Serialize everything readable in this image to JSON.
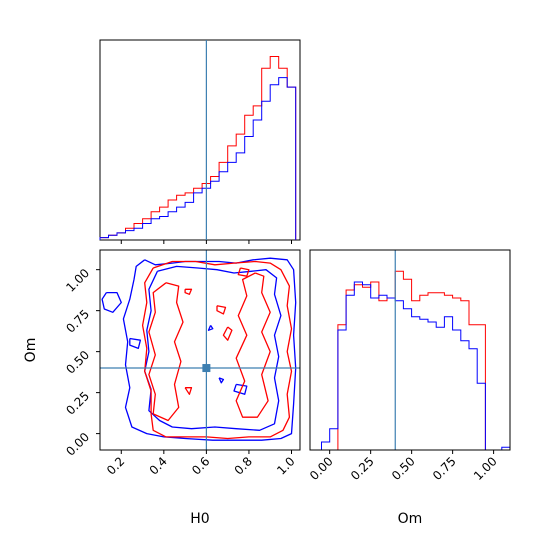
{
  "colors": {
    "red": "#ff0000",
    "blue": "#0000ff",
    "truth": "#3d7fb1"
  },
  "chart_data": [
    {
      "type": "step-histogram",
      "panel": "H0 marginal",
      "x_param": "H0",
      "xlim": [
        0.1,
        1.04
      ],
      "bin_edges": [
        0.1,
        0.14,
        0.18,
        0.22,
        0.26,
        0.3,
        0.34,
        0.38,
        0.42,
        0.46,
        0.5,
        0.54,
        0.58,
        0.62,
        0.66,
        0.7,
        0.74,
        0.78,
        0.82,
        0.86,
        0.9,
        0.94,
        0.98,
        1.02
      ],
      "truth": 0.6,
      "series": [
        {
          "color": "red",
          "values": [
            1,
            2,
            3,
            5,
            7,
            9,
            12,
            14,
            17,
            19,
            20,
            22,
            24,
            27,
            33,
            40,
            45,
            53,
            57,
            73,
            78,
            73,
            65
          ]
        },
        {
          "color": "blue",
          "values": [
            1,
            2,
            3,
            4,
            5,
            7,
            9,
            10,
            12,
            14,
            16,
            20,
            22,
            25,
            29,
            33,
            37,
            44,
            51,
            59,
            66,
            69,
            65
          ]
        }
      ],
      "ylim": [
        0,
        85
      ]
    },
    {
      "type": "contour",
      "panel": "H0 vs Om joint",
      "xlabel": "H0",
      "ylabel": "Om",
      "xlim": [
        0.1,
        1.04
      ],
      "ylim": [
        -0.1,
        1.12
      ],
      "xticks": [
        "0.2",
        "0.4",
        "0.6",
        "0.8",
        "1.0"
      ],
      "yticks": [
        "0.00",
        "0.25",
        "0.50",
        "0.75",
        "1.00"
      ],
      "truth": {
        "H0": 0.6,
        "Om": 0.4
      },
      "series": [
        {
          "color": "blue",
          "level": "outer",
          "contours": [
            [
              [
                0.31,
                1.06
              ],
              [
                0.36,
                1.03
              ],
              [
                0.44,
                1.04
              ],
              [
                0.5,
                1.05
              ],
              [
                0.57,
                1.05
              ],
              [
                0.66,
                1.05
              ],
              [
                0.74,
                1.04
              ],
              [
                0.82,
                1.06
              ],
              [
                0.9,
                1.07
              ],
              [
                0.98,
                1.06
              ],
              [
                1.01,
                1.0
              ],
              [
                1.02,
                0.8
              ],
              [
                1.01,
                0.6
              ],
              [
                1.02,
                0.4
              ],
              [
                1.01,
                0.18
              ],
              [
                1.0,
                0.0
              ],
              [
                0.95,
                -0.03
              ],
              [
                0.86,
                -0.04
              ],
              [
                0.75,
                -0.04
              ],
              [
                0.63,
                -0.04
              ],
              [
                0.5,
                -0.03
              ],
              [
                0.4,
                -0.02
              ],
              [
                0.32,
                0.0
              ],
              [
                0.25,
                0.04
              ],
              [
                0.22,
                0.16
              ],
              [
                0.24,
                0.28
              ],
              [
                0.22,
                0.42
              ],
              [
                0.23,
                0.56
              ],
              [
                0.21,
                0.7
              ],
              [
                0.24,
                0.82
              ],
              [
                0.26,
                0.94
              ],
              [
                0.27,
                1.02
              ],
              [
                0.31,
                1.06
              ]
            ],
            [
              [
                0.13,
                0.86
              ],
              [
                0.18,
                0.86
              ],
              [
                0.2,
                0.8
              ],
              [
                0.16,
                0.74
              ],
              [
                0.12,
                0.76
              ],
              [
                0.11,
                0.82
              ],
              [
                0.13,
                0.86
              ]
            ],
            [
              [
                0.24,
                0.58
              ],
              [
                0.29,
                0.57
              ],
              [
                0.28,
                0.52
              ],
              [
                0.24,
                0.54
              ],
              [
                0.24,
                0.58
              ]
            ]
          ]
        },
        {
          "color": "blue",
          "level": "inner",
          "contours": [
            [
              [
                0.37,
                0.99
              ],
              [
                0.46,
                1.02
              ],
              [
                0.56,
                1.01
              ],
              [
                0.65,
                1.0
              ],
              [
                0.73,
                0.98
              ],
              [
                0.81,
                0.99
              ],
              [
                0.88,
                1.0
              ],
              [
                0.93,
                0.95
              ],
              [
                0.92,
                0.85
              ],
              [
                0.95,
                0.72
              ],
              [
                0.92,
                0.6
              ],
              [
                0.94,
                0.47
              ],
              [
                0.92,
                0.34
              ],
              [
                0.94,
                0.2
              ],
              [
                0.92,
                0.06
              ],
              [
                0.85,
                0.02
              ],
              [
                0.74,
                0.03
              ],
              [
                0.64,
                0.04
              ],
              [
                0.53,
                0.03
              ],
              [
                0.44,
                0.04
              ],
              [
                0.38,
                0.08
              ],
              [
                0.33,
                0.14
              ],
              [
                0.34,
                0.27
              ],
              [
                0.31,
                0.38
              ],
              [
                0.33,
                0.5
              ],
              [
                0.32,
                0.63
              ],
              [
                0.34,
                0.75
              ],
              [
                0.33,
                0.88
              ],
              [
                0.37,
                0.99
              ]
            ],
            [
              [
                0.74,
                0.3
              ],
              [
                0.79,
                0.29
              ],
              [
                0.78,
                0.24
              ],
              [
                0.73,
                0.26
              ],
              [
                0.74,
                0.3
              ]
            ],
            [
              [
                0.66,
                0.34
              ],
              [
                0.68,
                0.33
              ],
              [
                0.67,
                0.31
              ],
              [
                0.66,
                0.34
              ]
            ],
            [
              [
                0.62,
                0.66
              ],
              [
                0.63,
                0.64
              ],
              [
                0.61,
                0.63
              ],
              [
                0.62,
                0.66
              ]
            ]
          ]
        },
        {
          "color": "red",
          "level": "outer",
          "contours": [
            [
              [
                0.35,
                1.01
              ],
              [
                0.44,
                1.05
              ],
              [
                0.55,
                1.05
              ],
              [
                0.64,
                1.03
              ],
              [
                0.73,
                1.04
              ],
              [
                0.83,
                1.05
              ],
              [
                0.9,
                1.04
              ],
              [
                0.95,
                1.0
              ],
              [
                0.99,
                0.9
              ],
              [
                0.98,
                0.78
              ],
              [
                1.0,
                0.64
              ],
              [
                0.98,
                0.5
              ],
              [
                1.0,
                0.38
              ],
              [
                0.98,
                0.24
              ],
              [
                0.99,
                0.1
              ],
              [
                0.96,
                0.02
              ],
              [
                0.9,
                -0.02
              ],
              [
                0.8,
                -0.02
              ],
              [
                0.7,
                -0.03
              ],
              [
                0.6,
                -0.02
              ],
              [
                0.5,
                -0.02
              ],
              [
                0.41,
                -0.02
              ],
              [
                0.35,
                0.02
              ],
              [
                0.34,
                0.12
              ],
              [
                0.34,
                0.26
              ],
              [
                0.31,
                0.38
              ],
              [
                0.32,
                0.52
              ],
              [
                0.3,
                0.66
              ],
              [
                0.32,
                0.8
              ],
              [
                0.31,
                0.92
              ],
              [
                0.35,
                1.01
              ]
            ]
          ]
        },
        {
          "color": "red",
          "level": "inner",
          "contours": [
            [
              [
                0.41,
                0.92
              ],
              [
                0.47,
                0.9
              ],
              [
                0.46,
                0.8
              ],
              [
                0.49,
                0.68
              ],
              [
                0.45,
                0.56
              ],
              [
                0.48,
                0.44
              ],
              [
                0.45,
                0.3
              ],
              [
                0.47,
                0.16
              ],
              [
                0.42,
                0.08
              ],
              [
                0.35,
                0.12
              ],
              [
                0.36,
                0.24
              ],
              [
                0.33,
                0.36
              ],
              [
                0.36,
                0.48
              ],
              [
                0.33,
                0.62
              ],
              [
                0.36,
                0.74
              ],
              [
                0.35,
                0.86
              ],
              [
                0.41,
                0.92
              ]
            ],
            [
              [
                0.83,
                0.98
              ],
              [
                0.87,
                0.96
              ],
              [
                0.86,
                0.86
              ],
              [
                0.9,
                0.74
              ],
              [
                0.86,
                0.62
              ],
              [
                0.9,
                0.5
              ],
              [
                0.86,
                0.36
              ],
              [
                0.89,
                0.2
              ],
              [
                0.84,
                0.1
              ],
              [
                0.77,
                0.1
              ],
              [
                0.74,
                0.2
              ],
              [
                0.78,
                0.32
              ],
              [
                0.74,
                0.46
              ],
              [
                0.79,
                0.6
              ],
              [
                0.75,
                0.72
              ],
              [
                0.79,
                0.84
              ],
              [
                0.77,
                0.94
              ],
              [
                0.83,
                0.98
              ]
            ],
            [
              [
                0.76,
                1.01
              ],
              [
                0.8,
                1.0
              ],
              [
                0.79,
                0.96
              ],
              [
                0.75,
                0.97
              ],
              [
                0.76,
                1.01
              ]
            ],
            [
              [
                0.5,
                0.88
              ],
              [
                0.53,
                0.88
              ],
              [
                0.52,
                0.85
              ],
              [
                0.5,
                0.86
              ],
              [
                0.5,
                0.88
              ]
            ],
            [
              [
                0.65,
                0.78
              ],
              [
                0.69,
                0.77
              ],
              [
                0.68,
                0.73
              ],
              [
                0.65,
                0.75
              ],
              [
                0.65,
                0.78
              ]
            ],
            [
              [
                0.7,
                0.65
              ],
              [
                0.72,
                0.63
              ],
              [
                0.7,
                0.57
              ],
              [
                0.68,
                0.6
              ],
              [
                0.7,
                0.65
              ]
            ],
            [
              [
                0.5,
                0.28
              ],
              [
                0.53,
                0.28
              ],
              [
                0.52,
                0.24
              ],
              [
                0.5,
                0.28
              ]
            ]
          ]
        }
      ]
    },
    {
      "type": "step-histogram",
      "panel": "Om marginal",
      "x_param": "Om",
      "xlim": [
        -0.12,
        1.1
      ],
      "bin_edges": [
        -0.05,
        0.0,
        0.05,
        0.1,
        0.15,
        0.2,
        0.25,
        0.3,
        0.35,
        0.4,
        0.45,
        0.5,
        0.55,
        0.6,
        0.65,
        0.7,
        0.75,
        0.8,
        0.85,
        0.9,
        0.95,
        1.0,
        1.05,
        1.1
      ],
      "truth": 0.4,
      "series": [
        {
          "color": "red",
          "values": [
            0,
            0,
            47,
            60,
            62,
            61,
            63,
            56,
            57,
            67,
            64,
            56,
            58,
            59,
            59,
            58,
            57,
            56,
            47,
            47,
            0,
            0,
            0
          ]
        },
        {
          "color": "blue",
          "values": [
            3,
            8,
            45,
            58,
            63,
            62,
            57,
            58,
            57,
            56,
            53,
            50,
            49,
            48,
            46,
            50,
            45,
            41,
            38,
            25,
            0,
            0,
            1
          ]
        }
      ],
      "ylim": [
        0,
        75
      ],
      "xticks": [
        "0.00",
        "0.25",
        "0.50",
        "0.75",
        "1.00"
      ],
      "xlabel": "Om"
    }
  ]
}
